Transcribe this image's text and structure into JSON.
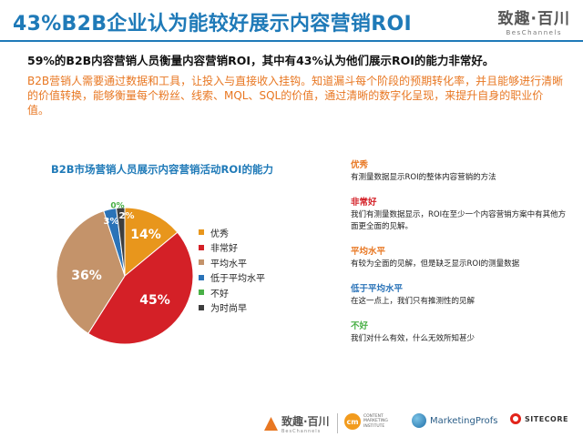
{
  "header": {
    "title": "43%B2B企业认为能较好展示内容营销ROI",
    "brand_name": "致趣·百川",
    "brand_sub": "BesChannels"
  },
  "subhead": "59%的B2B内容营销人员衡量内容营销ROI，其中有43%认为他们展示ROI的能力非常好。",
  "paragraph": "B2B营销人需要通过数据和工具，让投入与直接收入挂钩。知道漏斗每个阶段的预期转化率，并且能够进行清晰的价值转换，能够衡量每个粉丝、线索、MQL、SQL的价值，通过清晰的数字化呈现，来提升自身的职业价值。",
  "chart_data": {
    "type": "pie",
    "title": "B2B市场营销人员展示内容营销活动ROI的能力",
    "categories": [
      "优秀",
      "非常好",
      "平均水平",
      "低于平均水平",
      "不好",
      "为时尚早"
    ],
    "values": [
      14,
      45,
      36,
      3,
      0,
      2
    ],
    "data_labels": [
      "14%",
      "45%",
      "36%",
      "3%",
      "0%",
      "2%"
    ],
    "colors": [
      "#e8961c",
      "#d42027",
      "#c4936a",
      "#2a73b8",
      "#49b046",
      "#3e3e3e"
    ],
    "legend_position": "right"
  },
  "descriptions": [
    {
      "label": "优秀",
      "text": "有测量数据显示ROI的整体内容营销的方法",
      "color": "#e87722"
    },
    {
      "label": "非常好",
      "text": "我们有测量数据显示，ROI在至少一个内容营销方案中有其他方面更全面的见解。",
      "color": "#d42027"
    },
    {
      "label": "平均水平",
      "text": "有较为全面的见解，但是缺乏显示ROI的测量数据",
      "color": "#e87722"
    },
    {
      "label": "低于平均水平",
      "text": "在这一点上，我们只有推测性的见解",
      "color": "#2a73b8"
    },
    {
      "label": "不好",
      "text": "我们对什么有效，什么无效所知甚少",
      "color": "#49b046"
    }
  ],
  "footer": {
    "bes_name": "致趣·百川",
    "bes_sub": "BesChannels",
    "cmi_mark": "cm",
    "cmi_text": [
      "CONTENT",
      "MARKETING",
      "INSTITUTE"
    ],
    "mp_text": "MarketingProfs",
    "sc_text": "SITECORE"
  }
}
